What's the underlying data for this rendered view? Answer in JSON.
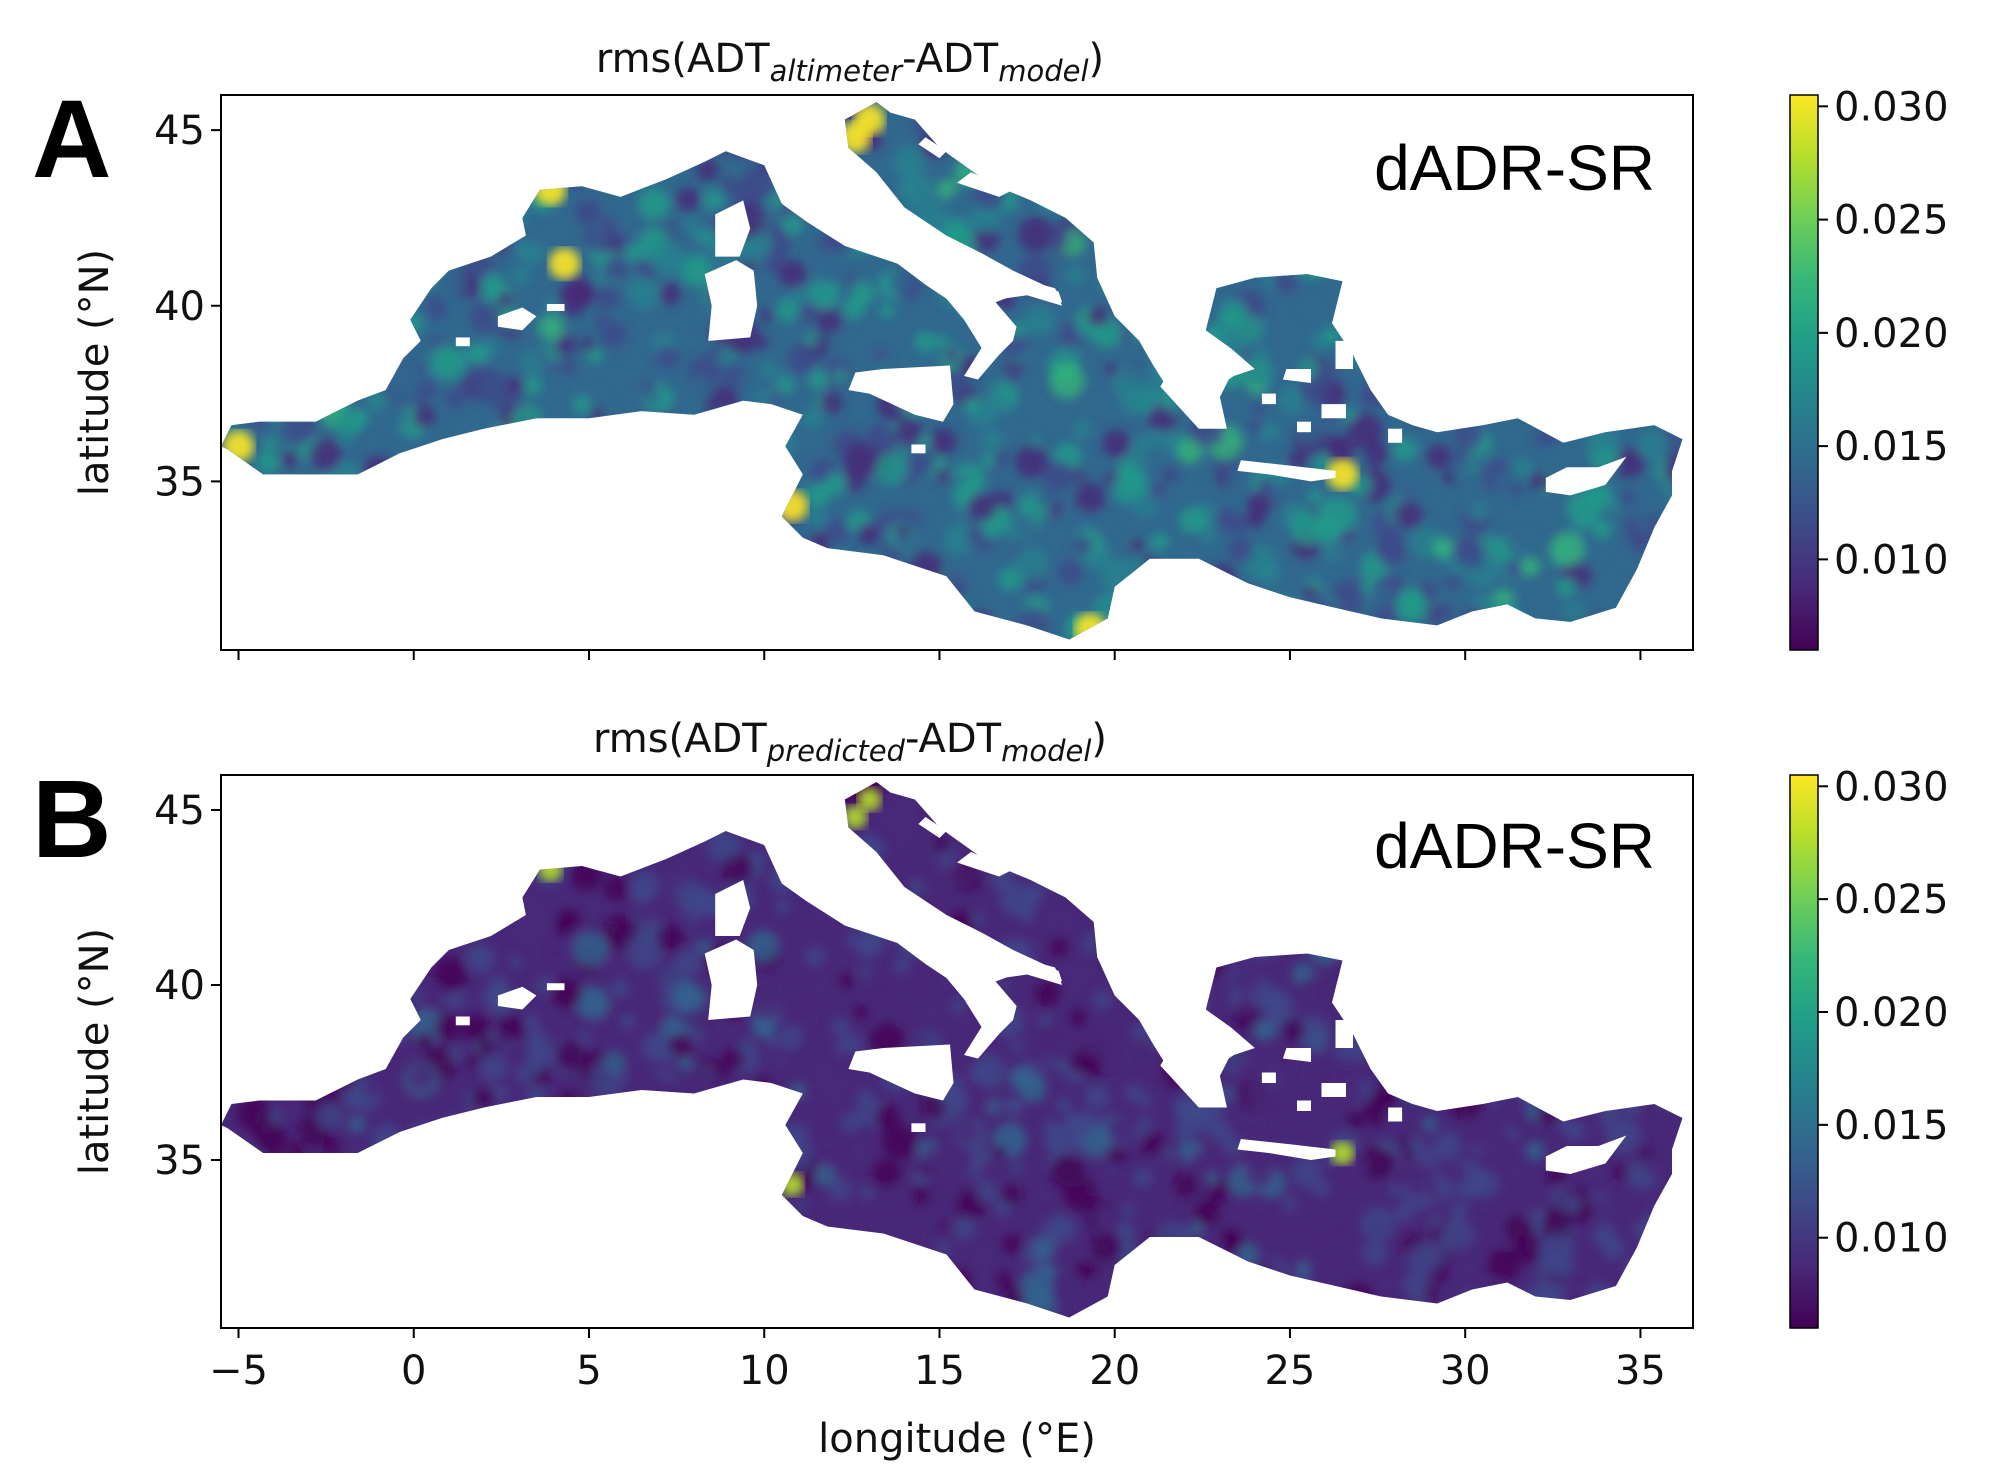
{
  "chart_data": [
    {
      "type": "heatmap",
      "panel_label": "A",
      "title": {
        "prefix": "rms(ADT",
        "sub1": "altimeter",
        "mid": "-ADT",
        "sub2": "model",
        "suffix": ")"
      },
      "annotation": "dADR-SR",
      "ylabel": "latitude (°N)",
      "xlim": [
        -5.5,
        36.5
      ],
      "ylim": [
        30.2,
        46
      ],
      "yticks": [
        35,
        40,
        45
      ],
      "xticks": [
        -5,
        0,
        5,
        10,
        15,
        20,
        25,
        30,
        35
      ],
      "show_xticklabels": false,
      "colorbar": {
        "min": 0.006,
        "max": 0.0305,
        "ticks": [
          0.01,
          0.015,
          0.02,
          0.025,
          0.03
        ],
        "ticklabels": [
          "0.010",
          "0.015",
          "0.020",
          "0.025",
          "0.030"
        ],
        "colormap": "viridis"
      },
      "field_level": 0.35,
      "field_variance": 0.55
    },
    {
      "type": "heatmap",
      "panel_label": "B",
      "title": {
        "prefix": "rms(ADT",
        "sub1": "predicted",
        "mid": "-ADT",
        "sub2": "model",
        "suffix": ")"
      },
      "annotation": "dADR-SR",
      "ylabel": "latitude (°N)",
      "xlabel": "longitude (°E)",
      "xlim": [
        -5.5,
        36.5
      ],
      "ylim": [
        30.2,
        46
      ],
      "yticks": [
        35,
        40,
        45
      ],
      "xticks": [
        -5,
        0,
        5,
        10,
        15,
        20,
        25,
        30,
        35
      ],
      "show_xticklabels": true,
      "colorbar": {
        "min": 0.006,
        "max": 0.0305,
        "ticks": [
          0.01,
          0.015,
          0.02,
          0.025,
          0.03
        ],
        "ticklabels": [
          "0.010",
          "0.015",
          "0.020",
          "0.025",
          "0.030"
        ],
        "colormap": "viridis"
      },
      "field_level": 0.15,
      "field_variance": 0.3
    }
  ],
  "colors": {
    "viridis": [
      "#440154",
      "#482878",
      "#3e4989",
      "#31688e",
      "#26828e",
      "#1f9e89",
      "#35b779",
      "#6ece58",
      "#b5de2b",
      "#fde725"
    ]
  }
}
